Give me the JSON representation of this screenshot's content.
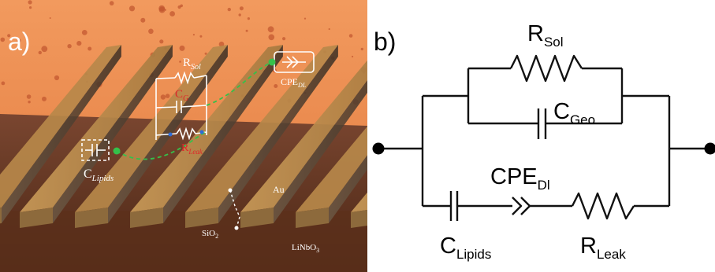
{
  "panel_a": {
    "label": "a)",
    "r_sol": {
      "main": "R",
      "sub": "Sol"
    },
    "c_geo": {
      "main": "C",
      "sub": "G"
    },
    "r_leak": {
      "main": "R",
      "sub": "Leak"
    },
    "cpe_dl": {
      "main": "CPE",
      "sub": "DL"
    },
    "c_lipids": {
      "main": "C",
      "sub": "Lipids"
    },
    "au": "Au",
    "sio2": {
      "main": "SiO",
      "sub": "2"
    },
    "linbo3": {
      "main": "LiNbO",
      "sub": "3"
    }
  },
  "panel_b": {
    "label": "b)",
    "r_sol": {
      "main": "R",
      "sub": "Sol"
    },
    "c_geo": {
      "main": "C",
      "sub": "Geo"
    },
    "cpe_dl": {
      "main": "CPE",
      "sub": "Dl"
    },
    "c_lipids": {
      "main": "C",
      "sub": "Lipids"
    },
    "r_leak": {
      "main": "R",
      "sub": "Leak"
    }
  },
  "colors": {
    "orange_liquid": "#ee8a4e",
    "dot": "#c0542d",
    "gold": "#b88a4a",
    "substrate": "#6b3b24",
    "dashed_green": "#35c04a",
    "red_label": "#e0262a"
  }
}
